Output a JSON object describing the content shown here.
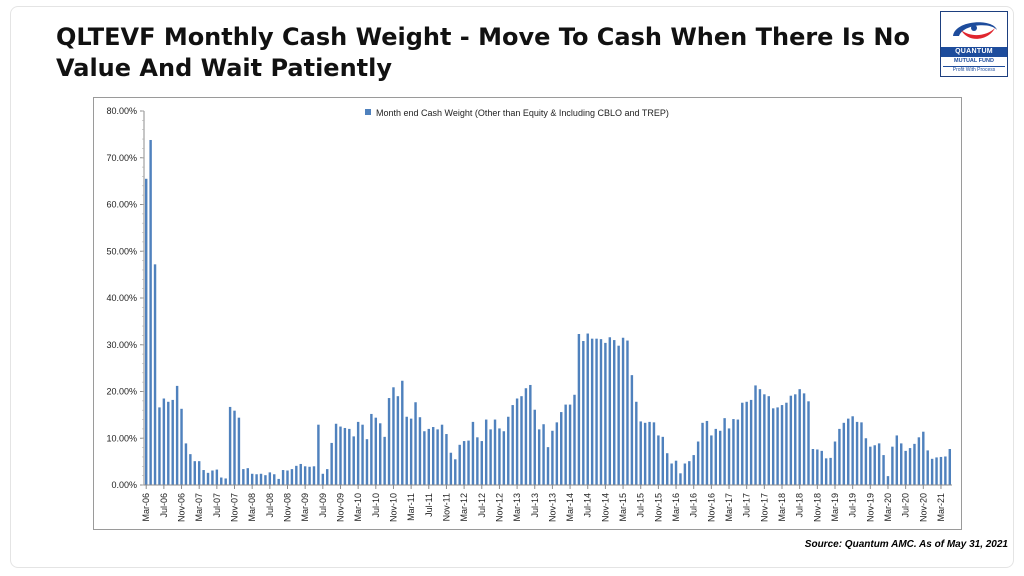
{
  "slide": {
    "title": "QLTEVF Monthly Cash Weight - Move To Cash When There Is No Value And Wait Patiently",
    "source": "Source: Quantum AMC. As of  May 31, 2021"
  },
  "logo": {
    "brand": "QUANTUM",
    "sub": "MUTUAL FUND",
    "tagline": "Profit With Process",
    "colors": {
      "navy": "#1d4c9c",
      "red": "#e0262e"
    }
  },
  "chart_data": {
    "type": "bar",
    "legend": "Month end Cash Weight (Other than Equity & Including CBLO and TREP)",
    "legend_position": "top-center",
    "bar_color": "#4f81bd",
    "grid": false,
    "ylim": [
      0,
      80
    ],
    "y_ticks": [
      "0.00%",
      "10.00%",
      "20.00%",
      "30.00%",
      "40.00%",
      "50.00%",
      "60.00%",
      "70.00%",
      "80.00%"
    ],
    "x_ticks": [
      "Mar-06",
      "Jul-06",
      "Nov-06",
      "Mar-07",
      "Jul-07",
      "Nov-07",
      "Mar-08",
      "Jul-08",
      "Nov-08",
      "Mar-09",
      "Jul-09",
      "Nov-09",
      "Mar-10",
      "Jul-10",
      "Nov-10",
      "Mar-11",
      "Jul-11",
      "Nov-11",
      "Mar-12",
      "Jul-12",
      "Nov-12",
      "Mar-13",
      "Jul-13",
      "Nov-13",
      "Mar-14",
      "Jul-14",
      "Nov-14",
      "Mar-15",
      "Jul-15",
      "Nov-15",
      "Mar-16",
      "Jul-16",
      "Nov-16",
      "Mar-17",
      "Jul-17",
      "Nov-17",
      "Mar-18",
      "Jul-18",
      "Nov-18",
      "Mar-19",
      "Jul-19",
      "Nov-19",
      "Mar-20",
      "Jul-20",
      "Nov-20",
      "Mar-21"
    ],
    "x_start": "Mar-06",
    "x_end": "May-21",
    "values": [
      65.5,
      73.8,
      47.2,
      16.6,
      18.5,
      17.8,
      18.2,
      21.2,
      16.3,
      8.9,
      6.6,
      5.1,
      5.1,
      3.2,
      2.6,
      3.1,
      3.3,
      1.6,
      1.4,
      16.7,
      15.9,
      14.4,
      3.4,
      3.6,
      2.4,
      2.3,
      2.4,
      2.1,
      2.7,
      2.3,
      1.3,
      3.2,
      3.1,
      3.4,
      4.1,
      4.5,
      4.0,
      3.9,
      4.0,
      12.9,
      2.4,
      3.4,
      9.0,
      13.1,
      12.5,
      12.2,
      12.0,
      10.4,
      13.5,
      12.9,
      9.8,
      15.2,
      14.4,
      13.2,
      10.3,
      18.6,
      20.9,
      19.0,
      22.3,
      14.6,
      14.2,
      17.7,
      14.5,
      11.5,
      12.0,
      12.4,
      11.9,
      12.9,
      10.9,
      6.9,
      5.5,
      8.6,
      9.4,
      9.5,
      13.5,
      10.2,
      9.4,
      14.0,
      11.9,
      14.0,
      12.1,
      11.5,
      14.6,
      17.1,
      18.5,
      19.0,
      20.7,
      21.4,
      16.1,
      11.9,
      13.0,
      8.1,
      11.6,
      13.4,
      15.6,
      17.2,
      17.2,
      19.3,
      32.3,
      30.8,
      32.4,
      31.3,
      31.3,
      31.2,
      30.4,
      31.6,
      31.0,
      29.8,
      31.5,
      30.9,
      23.5,
      17.8,
      13.6,
      13.3,
      13.5,
      13.4,
      10.6,
      10.3,
      6.8,
      4.6,
      5.2,
      2.5,
      4.6,
      5.1,
      6.4,
      9.3,
      13.3,
      13.7,
      10.6,
      12.0,
      11.6,
      14.3,
      12.1,
      14.1,
      14.0,
      17.6,
      17.8,
      18.2,
      21.3,
      20.5,
      19.4,
      19.0,
      16.4,
      16.6,
      17.1,
      17.6,
      19.1,
      19.4,
      20.5,
      19.6,
      17.9,
      7.7,
      7.6,
      7.3,
      5.7,
      5.8,
      9.3,
      12.0,
      13.3,
      14.2,
      14.7,
      13.5,
      13.4,
      10.0,
      8.2,
      8.5,
      8.9,
      6.4,
      1.9,
      8.2,
      10.6,
      8.9,
      7.3,
      7.9,
      8.8,
      10.2,
      11.4,
      7.4,
      5.6,
      5.9,
      6.0,
      6.1,
      7.7
    ]
  }
}
